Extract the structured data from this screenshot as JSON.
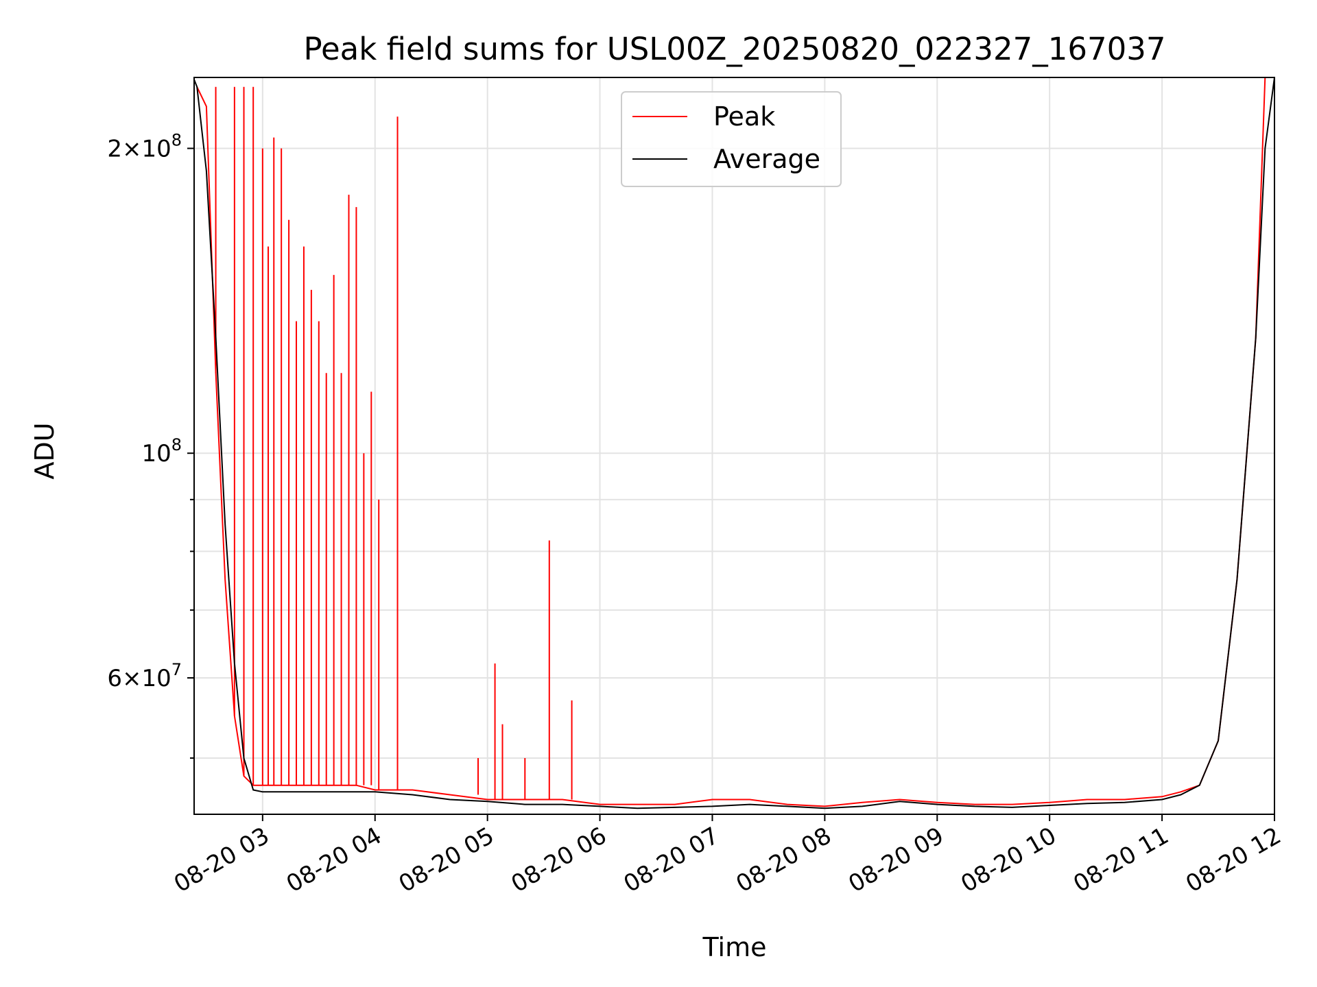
{
  "chart_data": {
    "type": "line",
    "title": "Peak field sums for USL00Z_20250820_022327_167037",
    "xlabel": "Time",
    "ylabel": "ADU",
    "yscale": "log",
    "grid": true,
    "legend_position": "top-center",
    "xlim": [
      "2025-08-20 02:23:27",
      "2025-08-20 12:00:00"
    ],
    "ylim": [
      44000000,
      235000000
    ],
    "x_ticks": [
      {
        "value": "2025-08-20 03:00",
        "label": "08-20 03"
      },
      {
        "value": "2025-08-20 04:00",
        "label": "08-20 04"
      },
      {
        "value": "2025-08-20 05:00",
        "label": "08-20 05"
      },
      {
        "value": "2025-08-20 06:00",
        "label": "08-20 06"
      },
      {
        "value": "2025-08-20 07:00",
        "label": "08-20 07"
      },
      {
        "value": "2025-08-20 08:00",
        "label": "08-20 08"
      },
      {
        "value": "2025-08-20 09:00",
        "label": "08-20 09"
      },
      {
        "value": "2025-08-20 10:00",
        "label": "08-20 10"
      },
      {
        "value": "2025-08-20 11:00",
        "label": "08-20 11"
      },
      {
        "value": "2025-08-20 12:00",
        "label": "08-20 12"
      }
    ],
    "y_major_ticks": [
      {
        "value": 60000000,
        "mantissa": "6",
        "exponent": "7"
      },
      {
        "value": 100000000,
        "mantissa": "",
        "exponent": "8"
      },
      {
        "value": 200000000,
        "mantissa": "2",
        "exponent": "8"
      }
    ],
    "y_minor_ticks": [
      50000000,
      70000000,
      80000000,
      90000000,
      300000000
    ],
    "series": [
      {
        "name": "Peak",
        "color": "#ff0000",
        "x": [
          "2025-08-20 02:25",
          "2025-08-20 02:30",
          "2025-08-20 02:35",
          "2025-08-20 02:40",
          "2025-08-20 02:45",
          "2025-08-20 02:50",
          "2025-08-20 02:55",
          "2025-08-20 03:00",
          "2025-08-20 03:10",
          "2025-08-20 03:20",
          "2025-08-20 03:30",
          "2025-08-20 03:40",
          "2025-08-20 03:50",
          "2025-08-20 04:00",
          "2025-08-20 04:10",
          "2025-08-20 04:20",
          "2025-08-20 04:40",
          "2025-08-20 05:00",
          "2025-08-20 05:20",
          "2025-08-20 05:40",
          "2025-08-20 06:00",
          "2025-08-20 06:20",
          "2025-08-20 06:40",
          "2025-08-20 07:00",
          "2025-08-20 07:20",
          "2025-08-20 07:40",
          "2025-08-20 08:00",
          "2025-08-20 08:20",
          "2025-08-20 08:40",
          "2025-08-20 09:00",
          "2025-08-20 09:20",
          "2025-08-20 09:40",
          "2025-08-20 10:00",
          "2025-08-20 10:20",
          "2025-08-20 10:40",
          "2025-08-20 11:00",
          "2025-08-20 11:10",
          "2025-08-20 11:20",
          "2025-08-20 11:30",
          "2025-08-20 11:40",
          "2025-08-20 11:50",
          "2025-08-20 11:55"
        ],
        "values": [
          230000000,
          220000000,
          120000000,
          75000000,
          55000000,
          48000000,
          47000000,
          47000000,
          47000000,
          47000000,
          47000000,
          47000000,
          47000000,
          46500000,
          46500000,
          46500000,
          46000000,
          45500000,
          45500000,
          45500000,
          45000000,
          45000000,
          45000000,
          45500000,
          45500000,
          45000000,
          44800000,
          45200000,
          45500000,
          45200000,
          45000000,
          45000000,
          45200000,
          45500000,
          45500000,
          45800000,
          46300000,
          47000000,
          52000000,
          75000000,
          130000000,
          235000000
        ],
        "spikes": [
          {
            "x": "2025-08-20 02:35",
            "value": 230000000
          },
          {
            "x": "2025-08-20 02:45",
            "value": 230000000
          },
          {
            "x": "2025-08-20 02:50",
            "value": 230000000
          },
          {
            "x": "2025-08-20 02:55",
            "value": 230000000
          },
          {
            "x": "2025-08-20 03:00",
            "value": 200000000
          },
          {
            "x": "2025-08-20 03:03",
            "value": 160000000
          },
          {
            "x": "2025-08-20 03:06",
            "value": 205000000
          },
          {
            "x": "2025-08-20 03:10",
            "value": 200000000
          },
          {
            "x": "2025-08-20 03:14",
            "value": 170000000
          },
          {
            "x": "2025-08-20 03:18",
            "value": 135000000
          },
          {
            "x": "2025-08-20 03:22",
            "value": 160000000
          },
          {
            "x": "2025-08-20 03:26",
            "value": 145000000
          },
          {
            "x": "2025-08-20 03:30",
            "value": 135000000
          },
          {
            "x": "2025-08-20 03:34",
            "value": 120000000
          },
          {
            "x": "2025-08-20 03:38",
            "value": 150000000
          },
          {
            "x": "2025-08-20 03:42",
            "value": 120000000
          },
          {
            "x": "2025-08-20 03:46",
            "value": 180000000
          },
          {
            "x": "2025-08-20 03:50",
            "value": 175000000
          },
          {
            "x": "2025-08-20 03:54",
            "value": 100000000
          },
          {
            "x": "2025-08-20 03:58",
            "value": 115000000
          },
          {
            "x": "2025-08-20 04:02",
            "value": 90000000
          },
          {
            "x": "2025-08-20 04:12",
            "value": 215000000
          },
          {
            "x": "2025-08-20 04:55",
            "value": 50000000
          },
          {
            "x": "2025-08-20 05:04",
            "value": 62000000
          },
          {
            "x": "2025-08-20 05:08",
            "value": 54000000
          },
          {
            "x": "2025-08-20 05:20",
            "value": 50000000
          },
          {
            "x": "2025-08-20 05:33",
            "value": 82000000
          },
          {
            "x": "2025-08-20 05:45",
            "value": 57000000
          }
        ]
      },
      {
        "name": "Average",
        "color": "#000000",
        "x": [
          "2025-08-20 02:23",
          "2025-08-20 02:25",
          "2025-08-20 02:30",
          "2025-08-20 02:35",
          "2025-08-20 02:40",
          "2025-08-20 02:45",
          "2025-08-20 02:50",
          "2025-08-20 02:55",
          "2025-08-20 03:00",
          "2025-08-20 03:20",
          "2025-08-20 03:40",
          "2025-08-20 04:00",
          "2025-08-20 04:20",
          "2025-08-20 04:40",
          "2025-08-20 05:00",
          "2025-08-20 05:20",
          "2025-08-20 05:40",
          "2025-08-20 06:00",
          "2025-08-20 06:20",
          "2025-08-20 06:40",
          "2025-08-20 07:00",
          "2025-08-20 07:20",
          "2025-08-20 07:40",
          "2025-08-20 08:00",
          "2025-08-20 08:20",
          "2025-08-20 08:40",
          "2025-08-20 09:00",
          "2025-08-20 09:20",
          "2025-08-20 09:40",
          "2025-08-20 10:00",
          "2025-08-20 10:20",
          "2025-08-20 10:40",
          "2025-08-20 11:00",
          "2025-08-20 11:10",
          "2025-08-20 11:20",
          "2025-08-20 11:30",
          "2025-08-20 11:40",
          "2025-08-20 11:50",
          "2025-08-20 11:55",
          "2025-08-20 12:00"
        ],
        "values": [
          235000000,
          230000000,
          190000000,
          130000000,
          85000000,
          62000000,
          50000000,
          46500000,
          46300000,
          46300000,
          46300000,
          46300000,
          46000000,
          45500000,
          45300000,
          45000000,
          45000000,
          44800000,
          44600000,
          44700000,
          44800000,
          45000000,
          44800000,
          44600000,
          44800000,
          45300000,
          45000000,
          44800000,
          44700000,
          44900000,
          45100000,
          45200000,
          45500000,
          46000000,
          47000000,
          52000000,
          75000000,
          130000000,
          200000000,
          235000000
        ]
      }
    ]
  }
}
